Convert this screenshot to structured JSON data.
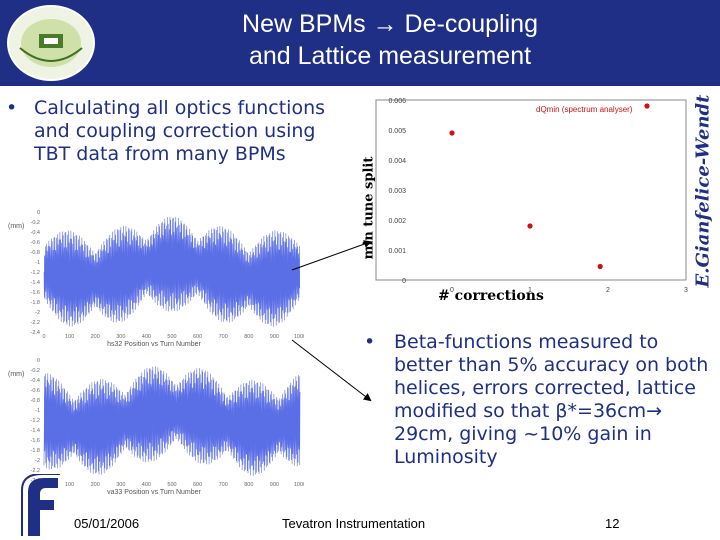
{
  "slide": {
    "title_line1": "New BPMs → De-coupling",
    "title_line2": "and Lattice measurement",
    "bullet1": "Calculating all optics functions and coupling correction using TBT data from many BPMs",
    "bullet2": "Beta-functions measured to better than 5% accuracy on both helices, errors corrected, lattice modified so that β*=36cm→ 29cm, giving ~10% gain in Luminosity",
    "bullet_char": "•",
    "author_credit": "E.Gianfelice-Wendt"
  },
  "footer": {
    "date": "05/01/2006",
    "center": "Tevatron Instrumentation",
    "page": "12"
  },
  "colors": {
    "header_bg": "#1f2f86",
    "text_blue": "#1f2f86",
    "trace_blue": "#5a6ee6",
    "point_red": "#cc1111"
  },
  "chart_data": [
    {
      "type": "scatter",
      "title": "",
      "xlabel": "# corrections",
      "ylabel": "min tune split",
      "series": [
        {
          "name": "dQmin (spectrum analyser)",
          "points": [
            [
              0,
              0.0049
            ],
            [
              1,
              0.0018
            ],
            [
              1.9,
              0.00045
            ],
            [
              2.5,
              0.0058
            ]
          ]
        }
      ],
      "xlim": [
        0,
        3
      ],
      "ylim": [
        0,
        0.006
      ],
      "xticks": [
        "0",
        "1",
        "2",
        "3"
      ],
      "yticks": [
        "0",
        "0.001",
        "0.002",
        "0.003",
        "0.004",
        "0.005",
        "0.006"
      ],
      "legend": "top-right",
      "grid": false
    },
    {
      "type": "line",
      "xlabel": "hs32 Position vs Turn Number",
      "ylabel": "(mm)",
      "xticks": [
        "0",
        "100",
        "200",
        "300",
        "400",
        "500",
        "600",
        "700",
        "800",
        "900",
        "1000"
      ],
      "yticks": [
        "0",
        "-0.2",
        "-0.4",
        "-0.6",
        "-0.8",
        "-1",
        "-1.2",
        "-1.4",
        "-1.6",
        "-1.8",
        "-2",
        "-2.2",
        "-2.4"
      ],
      "xlim": [
        0,
        1000
      ],
      "ylim": [
        -2.4,
        0
      ]
    },
    {
      "type": "line",
      "xlabel": "va33 Position vs Turn Number",
      "ylabel": "(mm)",
      "xticks": [
        "0",
        "100",
        "200",
        "300",
        "400",
        "500",
        "600",
        "700",
        "800",
        "900",
        "1000"
      ],
      "yticks": [
        "0",
        "-0.2",
        "-0.4",
        "-0.6",
        "-0.8",
        "-1",
        "-1.2",
        "-1.4",
        "-1.6",
        "-1.8",
        "-2",
        "-2.2",
        "-2.4"
      ],
      "xlim": [
        0,
        1000
      ],
      "ylim": [
        -2.4,
        0
      ]
    }
  ]
}
